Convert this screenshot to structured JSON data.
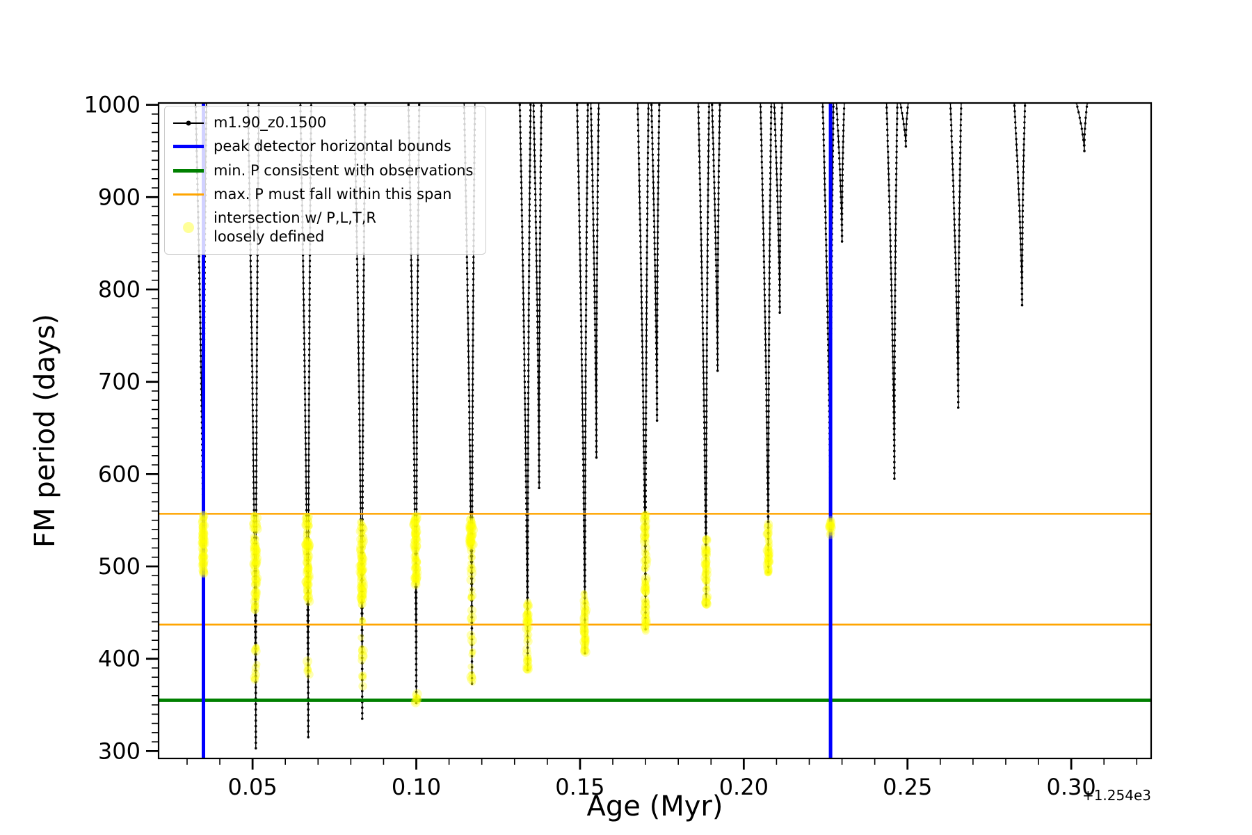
{
  "chart_data": {
    "type": "line",
    "title": "",
    "xlabel": "Age (Myr)",
    "ylabel": "FM period (days)",
    "x_offset_label": "+1.254e3",
    "xlim": [
      0.0213,
      0.3244
    ],
    "ylim": [
      292,
      1002
    ],
    "grid": false,
    "legend_position": "upper left",
    "xticks": {
      "major": [
        0.05,
        0.1,
        0.15,
        0.2,
        0.25,
        0.3
      ],
      "labels": [
        "0.05",
        "0.10",
        "0.15",
        "0.20",
        "0.25",
        "0.30"
      ],
      "minor_step": 0.01
    },
    "yticks": {
      "major": [
        300,
        400,
        500,
        600,
        700,
        800,
        900,
        1000
      ],
      "labels": [
        "300",
        "400",
        "500",
        "600",
        "700",
        "800",
        "900",
        "1000"
      ],
      "minor_step": 10
    },
    "series": [
      {
        "name": "m1.90_z0.1500",
        "color": "#000000",
        "marker": "dot"
      }
    ],
    "spikes": [
      {
        "x": 0.035,
        "min": 488,
        "yellow": [
          [
            492,
            556,
            70
          ]
        ]
      },
      {
        "x": 0.051,
        "min": 303,
        "yellow": [
          [
            452,
            556,
            85
          ],
          [
            356,
            414,
            12
          ]
        ]
      },
      {
        "x": 0.067,
        "min": 315,
        "yellow": [
          [
            462,
            556,
            80
          ],
          [
            378,
            400,
            6
          ]
        ]
      },
      {
        "x": 0.0835,
        "min": 335,
        "yellow": [
          [
            456,
            550,
            80
          ],
          [
            368,
            444,
            14
          ]
        ]
      },
      {
        "x": 0.1,
        "min": 352,
        "yellow": [
          [
            480,
            556,
            80
          ],
          [
            352,
            362,
            8
          ]
        ]
      },
      {
        "x": 0.117,
        "min": 373,
        "yellow": [
          [
            520,
            552,
            45
          ],
          [
            374,
            520,
            32
          ]
        ]
      },
      {
        "x": 0.134,
        "min": 388,
        "min2": 585,
        "yellow": [
          [
            386,
            464,
            45
          ]
        ]
      },
      {
        "x": 0.1515,
        "min": 406,
        "min2": 618,
        "yellow": [
          [
            404,
            472,
            45
          ]
        ]
      },
      {
        "x": 0.17,
        "min": 432,
        "min2": 658,
        "yellow": [
          [
            430,
            556,
            75
          ]
        ]
      },
      {
        "x": 0.1885,
        "min": 458,
        "min2": 712,
        "yellow": [
          [
            456,
            532,
            48
          ]
        ]
      },
      {
        "x": 0.2075,
        "min": 494,
        "min2": 775,
        "yellow": [
          [
            492,
            546,
            42
          ]
        ]
      },
      {
        "x": 0.2265,
        "min": 536,
        "min2": 852,
        "yellow": [
          [
            534,
            554,
            18
          ]
        ]
      },
      {
        "x": 0.246,
        "min": 595,
        "min2": 955,
        "yellow": []
      },
      {
        "x": 0.2655,
        "min": 672,
        "yellow": []
      },
      {
        "x": 0.285,
        "min": 783,
        "yellow": []
      },
      {
        "x": 0.304,
        "min": 950,
        "yellow": []
      }
    ],
    "vlines": {
      "x": [
        0.035,
        0.2265
      ],
      "color": "#0000ff",
      "width": 5
    },
    "hlines": [
      {
        "y": 557,
        "color": "#ffa500",
        "width": 2.5,
        "name": "max-span-upper"
      },
      {
        "y": 437,
        "color": "#ffa500",
        "width": 2.5,
        "name": "max-span-lower"
      },
      {
        "y": 355,
        "color": "#008000",
        "width": 5,
        "name": "min-p-observed"
      }
    ],
    "scatter_style": {
      "color": "#ffff00",
      "opacity": 0.3,
      "radius": 5.5
    }
  },
  "legend": {
    "items": [
      {
        "type": "line-dot",
        "color": "#000000",
        "weight": 2,
        "label": "m1.90_z0.1500"
      },
      {
        "type": "line",
        "color": "#0000ff",
        "weight": 5,
        "label": "peak detector horizontal bounds"
      },
      {
        "type": "line",
        "color": "#008000",
        "weight": 5,
        "label": "min. P consistent with observations"
      },
      {
        "type": "line",
        "color": "#ffa500",
        "weight": 3,
        "label": "max. P must fall within this span"
      },
      {
        "type": "scatter",
        "color": "#ffff00",
        "label": "intersection w/ P,L,T,R\nloosely defined"
      }
    ]
  }
}
